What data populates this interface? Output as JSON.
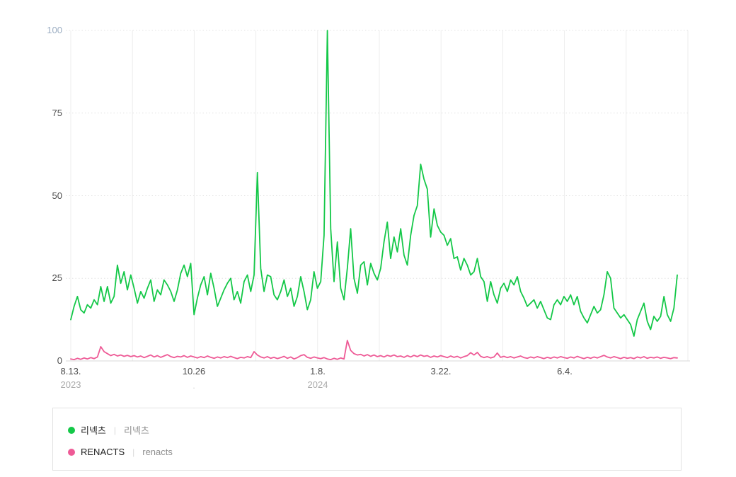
{
  "axes": {
    "y_ticks": [
      "100",
      "75",
      "50",
      "25",
      "0"
    ],
    "x_ticks": [
      "8.13.",
      "10.26",
      "1.8.",
      "3.22.",
      "6.4."
    ],
    "x_years": [
      "2023",
      "2024"
    ],
    "stray_dot": "."
  },
  "legend": {
    "divider": "|",
    "items": [
      {
        "label": "리넥츠",
        "sub_label": "리넥츠",
        "color": "#14c848"
      },
      {
        "label": "RENACTS",
        "sub_label": "renacts",
        "color": "#ee5a96"
      }
    ]
  },
  "chart_data": {
    "type": "line",
    "title": "",
    "x_axis": {
      "tick_labels": [
        "8.13.",
        "10.26",
        "1.8.",
        "3.22.",
        "6.4."
      ],
      "tick_years": [
        "2023",
        "",
        "2024",
        "",
        ""
      ],
      "start_date": "2023-08-13",
      "labeled_tick_interval_days": 74,
      "gridline_interval_days": 37,
      "sampling_interval_days": 2
    },
    "y_axis": {
      "tick_labels": [
        "0",
        "25",
        "50",
        "75",
        "100"
      ],
      "range": [
        0,
        100
      ],
      "gridline_style": "dotted"
    },
    "legend_position": "bottom",
    "grid": true,
    "series": [
      {
        "name": "리넥츠",
        "query": "리넥츠",
        "color": "#14c848",
        "values": [
          12.5,
          16.5,
          19.5,
          15.5,
          14.5,
          17,
          16,
          18.5,
          17,
          22.5,
          18,
          22.5,
          17.5,
          19.5,
          29,
          23.5,
          27,
          21.5,
          26,
          22,
          17.5,
          21,
          19,
          22,
          24.5,
          18,
          21.5,
          20,
          24.5,
          23,
          21,
          18,
          21.5,
          26.5,
          29,
          25.5,
          29.5,
          14,
          19,
          23,
          25.5,
          20,
          26.5,
          22,
          16.5,
          19,
          21.5,
          23.5,
          25,
          18.5,
          21,
          17.5,
          24,
          26,
          21,
          26,
          57,
          28,
          21,
          26,
          25.5,
          20,
          18.5,
          21,
          24.5,
          19.5,
          22,
          16.5,
          19.5,
          25.5,
          21,
          15.5,
          18.5,
          27,
          22,
          24,
          38,
          100,
          40,
          24,
          36,
          22,
          18.5,
          28,
          40,
          25,
          20.5,
          29,
          30,
          23,
          29.5,
          26.5,
          24.5,
          28,
          36,
          42,
          31,
          37.5,
          33,
          40,
          32,
          29,
          38,
          44,
          47,
          59.5,
          55,
          52,
          37.5,
          46,
          41,
          39,
          38,
          35,
          37,
          31,
          31.5,
          27.5,
          31,
          29,
          26,
          27,
          31,
          25.5,
          24,
          18,
          24,
          20,
          17.5,
          22,
          23.5,
          21,
          24.5,
          23,
          25.5,
          21,
          19,
          16.5,
          17.5,
          18.5,
          16,
          18,
          15.5,
          13,
          12.5,
          17,
          18.5,
          17,
          19.5,
          18,
          20,
          17,
          19.5,
          15,
          13,
          11.5,
          14,
          16.5,
          14.5,
          15.5,
          20,
          27,
          25,
          16,
          14.5,
          13,
          14,
          12.5,
          11,
          7.5,
          12.5,
          15,
          17.5,
          12,
          9.5,
          13.5,
          12,
          13.5,
          19.5,
          14,
          12,
          16,
          26
        ]
      },
      {
        "name": "RENACTS",
        "query": "renacts",
        "color": "#ee5a96",
        "values": [
          0.6,
          0.4,
          0.8,
          0.5,
          0.9,
          0.6,
          1,
          0.7,
          1.2,
          4.3,
          2.8,
          2.2,
          1.6,
          2,
          1.5,
          1.8,
          1.4,
          1.7,
          1.3,
          1.6,
          1.2,
          1.5,
          1,
          1.4,
          1.8,
          1.2,
          1.6,
          1.1,
          1.5,
          1.9,
          1.3,
          1,
          1.4,
          1.2,
          1.6,
          1.1,
          1.5,
          1.2,
          0.9,
          1.3,
          1,
          1.5,
          1.1,
          0.8,
          1.2,
          0.9,
          1.3,
          1,
          1.4,
          1,
          0.7,
          1.1,
          0.9,
          1.3,
          1,
          2.8,
          1.8,
          1.2,
          0.9,
          1.3,
          0.8,
          1.1,
          0.7,
          1,
          1.4,
          0.8,
          1.2,
          0.6,
          1,
          1.6,
          1.9,
          1.1,
          0.8,
          1.2,
          0.9,
          0.7,
          1,
          0.6,
          0.4,
          0.8,
          0.5,
          0.9,
          0.6,
          6.2,
          3.2,
          2.2,
          1.8,
          2,
          1.5,
          1.9,
          1.4,
          1.8,
          1.3,
          1.6,
          1.2,
          1.7,
          1.4,
          1.8,
          1.3,
          1.5,
          1.1,
          1.6,
          1.2,
          1.7,
          1.3,
          1.8,
          1.4,
          1.6,
          1.1,
          1.5,
          1.2,
          1.6,
          1.3,
          1,
          1.5,
          1.1,
          1.4,
          0.9,
          1.3,
          1.6,
          2.5,
          1.8,
          2.6,
          1.4,
          1,
          1.3,
          0.9,
          1.2,
          2.4,
          1.1,
          1.4,
          1,
          1.3,
          0.9,
          1.2,
          1.5,
          1,
          0.8,
          1.2,
          0.9,
          1.3,
          1,
          0.7,
          1.1,
          0.8,
          1.2,
          0.9,
          1.3,
          1,
          0.8,
          1.2,
          0.9,
          1.4,
          1,
          0.7,
          1.1,
          0.8,
          1.2,
          0.9,
          1.3,
          1.7,
          1.2,
          0.9,
          1.3,
          1,
          0.7,
          1.1,
          0.8,
          1,
          0.7,
          1.2,
          0.9,
          1.3,
          0.8,
          1.1,
          0.9,
          1.2,
          0.8,
          1.1,
          0.9,
          0.7,
          1,
          0.9
        ]
      }
    ]
  }
}
